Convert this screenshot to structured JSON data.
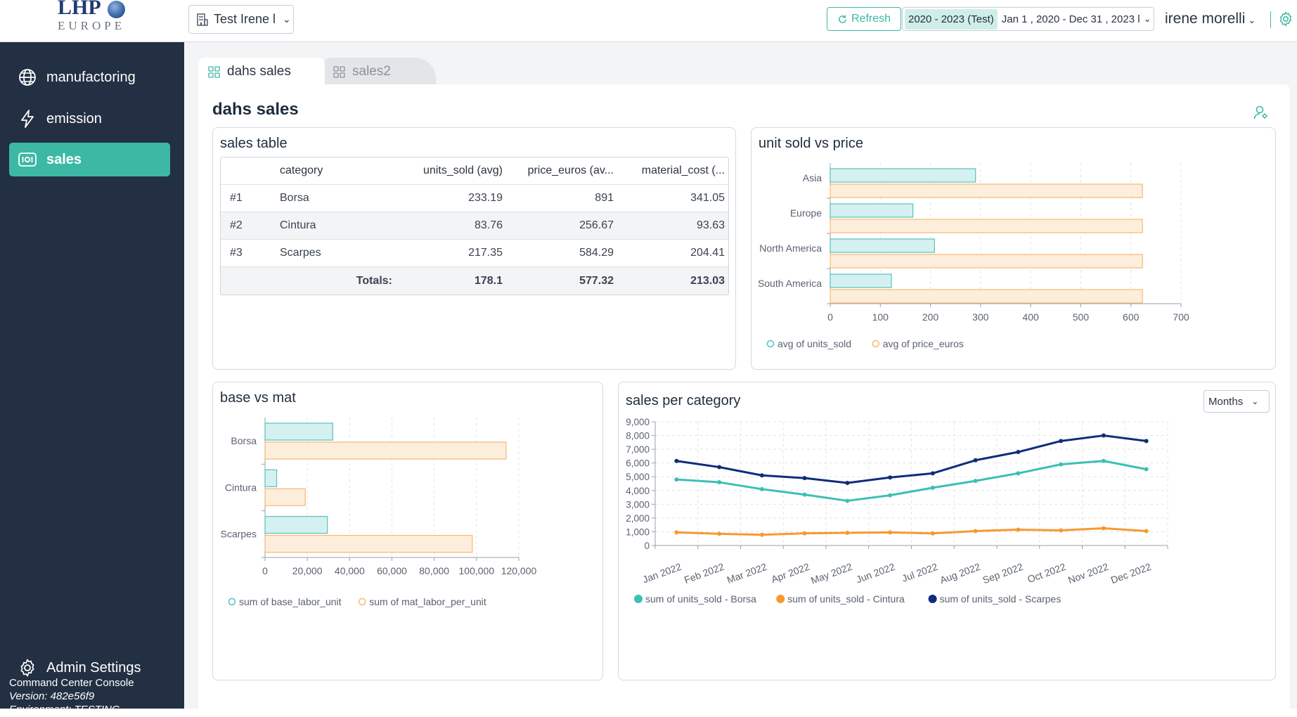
{
  "brand": {
    "logo_main": "LHP",
    "logo_sub": "EUROPE"
  },
  "header": {
    "company": "Test Irene l",
    "refresh_label": "Refresh",
    "date_preset": "2020 - 2023 (Test)",
    "date_range": "Jan 1 , 2020 - Dec 31 , 2023 l",
    "user_name": "irene morelli"
  },
  "sidebar": {
    "items": [
      {
        "label": "manufactoring",
        "icon": "globe-icon"
      },
      {
        "label": "emission",
        "icon": "lightning-icon"
      },
      {
        "label": "sales",
        "icon": "sensor-icon",
        "active": true
      }
    ],
    "admin_label": "Admin Settings",
    "console_name": "Command Center Console",
    "version": "Version: 482e56f9",
    "environment": "Environment: TESTING"
  },
  "tabs": [
    {
      "label": "dahs sales",
      "active": true
    },
    {
      "label": "sales2",
      "active": false
    }
  ],
  "page": {
    "title": "dahs sales"
  },
  "sales_table": {
    "title": "sales table",
    "columns": [
      "",
      "category",
      "units_sold (avg)",
      "price_euros (av...",
      "material_cost (..."
    ],
    "rows": [
      [
        "#1",
        "Borsa",
        "233.19",
        "891",
        "341.05"
      ],
      [
        "#2",
        "Cintura",
        "83.76",
        "256.67",
        "93.63"
      ],
      [
        "#3",
        "Scarpes",
        "217.35",
        "584.29",
        "204.41"
      ]
    ],
    "totals_label": "Totals:",
    "totals": [
      "178.1",
      "577.32",
      "213.03"
    ]
  },
  "chart_data": [
    {
      "type": "bar",
      "orientation": "horizontal",
      "title": "unit sold vs price",
      "categories": [
        "Asia",
        "Europe",
        "North America",
        "South America"
      ],
      "series": [
        {
          "name": "avg of units_sold",
          "values": [
            290,
            165,
            208,
            122
          ]
        },
        {
          "name": "avg of price_euros",
          "values": [
            623,
            623,
            623,
            623
          ]
        }
      ],
      "xlim": [
        0,
        700
      ],
      "xticks": [
        "0",
        "100",
        "200",
        "300",
        "400",
        "500",
        "600",
        "700"
      ],
      "colors": {
        "units": "#55c2c2",
        "price": "#f6b96e"
      },
      "legend": "bottom-left",
      "grid": true
    },
    {
      "type": "bar",
      "orientation": "horizontal",
      "title": "base vs mat",
      "categories": [
        "Borsa",
        "Cintura",
        "Scarpes"
      ],
      "series": [
        {
          "name": "sum of base_labor_unit",
          "values": [
            32000,
            5500,
            29500
          ]
        },
        {
          "name": "sum of mat_labor_per_unit",
          "values": [
            114000,
            19000,
            98000
          ]
        }
      ],
      "xlim": [
        0,
        120000
      ],
      "xticks": [
        "0",
        "20,000",
        "40,000",
        "60,000",
        "80,000",
        "100,000",
        "120,000"
      ],
      "colors": {
        "base": "#55c2c2",
        "mat": "#f6b96e"
      },
      "legend": "bottom-left",
      "grid": true
    },
    {
      "type": "line",
      "title": "sales per category",
      "interval_select": "Months",
      "categories": [
        "Jan 2022",
        "Feb 2022",
        "Mar 2022",
        "Apr 2022",
        "May 2022",
        "Jun 2022",
        "Jul 2022",
        "Aug 2022",
        "Sep 2022",
        "Oct 2022",
        "Nov 2022",
        "Dec 2022"
      ],
      "series": [
        {
          "name": "sum of units_sold - Borsa",
          "color": "#3dbfb5",
          "values": [
            4800,
            4600,
            4100,
            3700,
            3250,
            3650,
            4200,
            4700,
            5250,
            5900,
            6150,
            5550
          ]
        },
        {
          "name": "sum of units_sold - Cintura",
          "color": "#f59a2f",
          "values": [
            950,
            850,
            780,
            880,
            920,
            950,
            880,
            1050,
            1150,
            1100,
            1250,
            1050
          ]
        },
        {
          "name": "sum of units_sold - Scarpes",
          "color": "#0f2d7a",
          "values": [
            6150,
            5700,
            5100,
            4900,
            4550,
            4950,
            5250,
            6200,
            6800,
            7600,
            8000,
            7600
          ]
        }
      ],
      "ylim": [
        0,
        9000
      ],
      "yticks": [
        "0",
        "1,000",
        "2,000",
        "3,000",
        "4,000",
        "5,000",
        "6,000",
        "7,000",
        "8,000",
        "9,000"
      ],
      "legend": "bottom-left",
      "grid": true
    }
  ]
}
